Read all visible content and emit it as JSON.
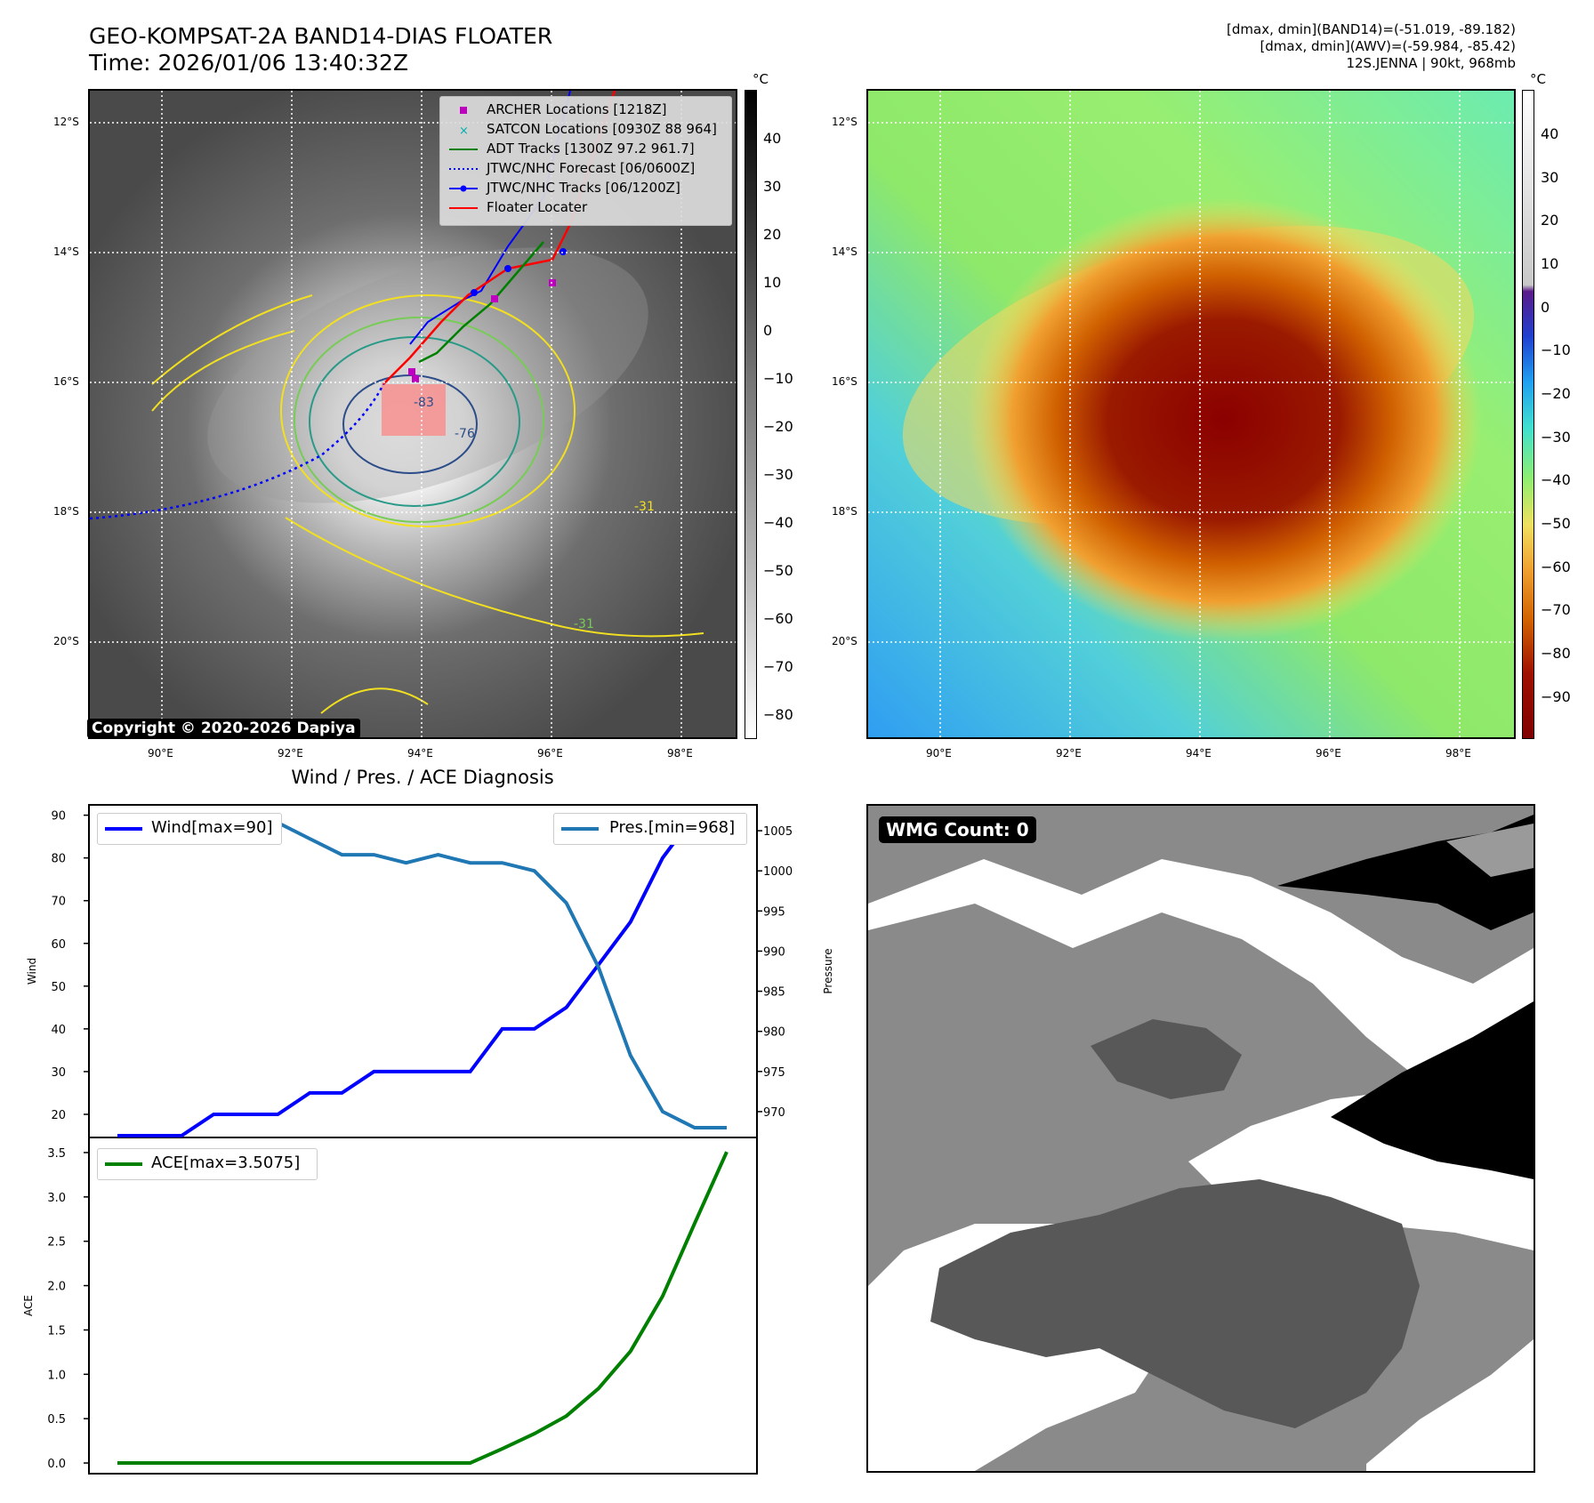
{
  "header": {
    "title": "GEO-KOMPSAT-2A BAND14-DIAS FLOATER",
    "time": "Time: 2026/01/06 13:40:32Z",
    "dmax_band14": "[dmax, dmin](BAND14)=(-51.019, -89.182)",
    "dmax_awv": "[dmax, dmin](AWV)=(-59.984, -85.42)",
    "storm": "12S.JENNA | 90kt, 968mb"
  },
  "map_axes": {
    "lat_labels": [
      "12°S",
      "14°S",
      "16°S",
      "18°S",
      "20°S"
    ],
    "lon_labels": [
      "90°E",
      "92°E",
      "94°E",
      "96°E",
      "98°E"
    ]
  },
  "colorbar_left": {
    "unit": "°C",
    "ticks": [
      "40",
      "30",
      "20",
      "10",
      "0",
      "−10",
      "−20",
      "−30",
      "−40",
      "−50",
      "−60",
      "−70",
      "−80"
    ]
  },
  "colorbar_right": {
    "unit": "°C",
    "ticks": [
      "40",
      "30",
      "20",
      "10",
      "0",
      "−10",
      "−20",
      "−30",
      "−40",
      "−50",
      "−60",
      "−70",
      "−80",
      "−90"
    ]
  },
  "legend_map": {
    "archer": "ARCHER Locations [1218Z]",
    "satcon": "SATCON Locations [0930Z 88 964]",
    "adt": "ADT Tracks [1300Z 97.2 961.7]",
    "forecast": "JTWC/NHC Forecast [06/0600Z]",
    "tracks": "JTWC/NHC Tracks [06/1200Z]",
    "floater": "Floater Locater"
  },
  "copyright": "Copyright © 2020-2026 Dapiya",
  "diagnosis_title": "Wind / Pres. / ACE Diagnosis",
  "wmg_label": "WMG Count: 0",
  "contour_labels": [
    "-83",
    "-76",
    "-31",
    "-31"
  ],
  "colors": {
    "wind": "#0000ff",
    "pressure": "#1f77b4",
    "ace": "#008000",
    "archer": "#c000c0",
    "satcon": "#00b0b0",
    "floater": "#ff0000"
  },
  "chart_data": [
    {
      "type": "line",
      "title": "Wind / Pres. / ACE Diagnosis",
      "ylabel": "Wind",
      "ylabel2": "Pressure",
      "ylim": [
        15,
        92
      ],
      "ylim2": [
        967,
        1008
      ],
      "yticks": [
        20,
        30,
        40,
        50,
        60,
        70,
        80,
        90
      ],
      "yticks2": [
        970,
        975,
        980,
        985,
        990,
        995,
        1000,
        1005
      ],
      "x": [
        0,
        1,
        2,
        3,
        4,
        5,
        6,
        7,
        8,
        9,
        10,
        11,
        12,
        13,
        14,
        15,
        16,
        17,
        18,
        19
      ],
      "series": [
        {
          "name": "Wind[max=90]",
          "axis": "left",
          "values": [
            15,
            15,
            15,
            20,
            20,
            20,
            25,
            25,
            30,
            30,
            30,
            30,
            40,
            40,
            45,
            55,
            65,
            80,
            90,
            90
          ]
        },
        {
          "name": "Pres.[min=968]",
          "axis": "right",
          "values": [
            1007,
            1007,
            1007,
            1007,
            1006,
            1006,
            1004,
            1002,
            1002,
            1001,
            1002,
            1001,
            1001,
            1000,
            996,
            988,
            977,
            970,
            968,
            968
          ]
        }
      ]
    },
    {
      "type": "line",
      "ylabel": "ACE",
      "ylim": [
        -0.1,
        3.65
      ],
      "yticks": [
        0.0,
        0.5,
        1.0,
        1.5,
        2.0,
        2.5,
        3.0,
        3.5
      ],
      "x": [
        0,
        1,
        2,
        3,
        4,
        5,
        6,
        7,
        8,
        9,
        10,
        11,
        12,
        13,
        14,
        15,
        16,
        17,
        18,
        19
      ],
      "series": [
        {
          "name": "ACE[max=3.5075]",
          "values": [
            0,
            0,
            0,
            0,
            0,
            0,
            0,
            0,
            0,
            0,
            0,
            0,
            0.16,
            0.33,
            0.53,
            0.84,
            1.26,
            1.88,
            2.7,
            3.5075
          ]
        }
      ]
    }
  ]
}
